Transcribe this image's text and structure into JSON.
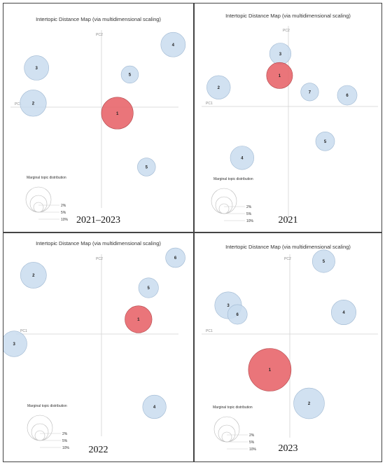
{
  "colors": {
    "bubble": "#c9dcef",
    "bubble_stroke": "#9fb8d2",
    "selected": "#e8666c",
    "selected_stroke": "#b04448",
    "axis": "#d3d3d3"
  },
  "chart_data": [
    {
      "type": "scatter",
      "title": "Intertopic Distance Map (via multidimensional scaling)",
      "caption": "2021–2023",
      "xlabel": "PC1",
      "ylabel": "PC2",
      "legend_title": "Marginal topic distribution",
      "legend_sizes": [
        "2%",
        "5%",
        "10%"
      ],
      "xlim": [
        -1,
        1
      ],
      "ylim": [
        -1,
        1
      ],
      "topics": [
        {
          "id": "3",
          "x": -0.78,
          "y": 0.59,
          "size": 6.8,
          "selected": false
        },
        {
          "id": "2",
          "x": -0.82,
          "y": 0.06,
          "size": 7.3,
          "selected": false
        },
        {
          "id": "4",
          "x": 0.86,
          "y": 0.94,
          "size": 6.8,
          "selected": false
        },
        {
          "id": "5",
          "x": 0.34,
          "y": 0.49,
          "size": 4.8,
          "selected": false
        },
        {
          "id": "1",
          "x": 0.19,
          "y": -0.09,
          "size": 8.8,
          "selected": true
        },
        {
          "id": "5",
          "x": 0.54,
          "y": -0.9,
          "size": 5.0,
          "selected": false
        }
      ]
    },
    {
      "type": "scatter",
      "title": "Intertopic Distance Map (via multidimensional scaling)",
      "caption": "2021",
      "xlabel": "PC1",
      "ylabel": "PC2",
      "legend_title": "Marginal topic distribution",
      "legend_sizes": [
        "2%",
        "5%",
        "10%"
      ],
      "xlim": [
        -1,
        1
      ],
      "ylim": [
        -1,
        1
      ],
      "topics": [
        {
          "id": "3",
          "x": -0.11,
          "y": 0.8,
          "size": 6.0,
          "selected": false
        },
        {
          "id": "1",
          "x": -0.12,
          "y": 0.47,
          "size": 7.3,
          "selected": true
        },
        {
          "id": "2",
          "x": -0.95,
          "y": 0.29,
          "size": 6.6,
          "selected": false
        },
        {
          "id": "7",
          "x": 0.29,
          "y": 0.22,
          "size": 5.0,
          "selected": false
        },
        {
          "id": "6",
          "x": 0.8,
          "y": 0.17,
          "size": 5.5,
          "selected": false
        },
        {
          "id": "5",
          "x": 0.5,
          "y": -0.53,
          "size": 5.3,
          "selected": false
        },
        {
          "id": "4",
          "x": -0.63,
          "y": -0.78,
          "size": 6.6,
          "selected": false
        }
      ]
    },
    {
      "type": "scatter",
      "title": "Intertopic Distance Map (via multidimensional scaling)",
      "caption": "2022",
      "xlabel": "PC1",
      "ylabel": "PC2",
      "legend_title": "Marginal topic distribution",
      "legend_sizes": [
        "2%",
        "5%",
        "10%"
      ],
      "xlim": [
        -1,
        1
      ],
      "ylim": [
        -1,
        1
      ],
      "topics": [
        {
          "id": "2",
          "x": -0.81,
          "y": 0.84,
          "size": 7.3,
          "selected": false
        },
        {
          "id": "6",
          "x": 0.88,
          "y": 1.09,
          "size": 5.5,
          "selected": false
        },
        {
          "id": "5",
          "x": 0.56,
          "y": 0.66,
          "size": 5.6,
          "selected": false
        },
        {
          "id": "1",
          "x": 0.44,
          "y": 0.21,
          "size": 7.6,
          "selected": true
        },
        {
          "id": "3",
          "x": -1.04,
          "y": -0.14,
          "size": 7.2,
          "selected": false
        },
        {
          "id": "4",
          "x": 0.63,
          "y": -1.04,
          "size": 6.6,
          "selected": false
        }
      ]
    },
    {
      "type": "scatter",
      "title": "Intertopic Distance Map (via multidimensional scaling)",
      "caption": "2023",
      "xlabel": "PC1",
      "ylabel": "PC2",
      "legend_title": "Marginal topic distribution",
      "legend_sizes": [
        "2%",
        "5%",
        "10%"
      ],
      "xlim": [
        -1,
        1
      ],
      "ylim": [
        -1,
        1
      ],
      "topics": [
        {
          "id": "5",
          "x": 0.44,
          "y": 1.04,
          "size": 5.3,
          "selected": false
        },
        {
          "id": "3",
          "x": -0.8,
          "y": 0.41,
          "size": 6.3,
          "selected": false
        },
        {
          "id": "6",
          "x": -0.68,
          "y": 0.28,
          "size": 4.6,
          "selected": false
        },
        {
          "id": "4",
          "x": 0.7,
          "y": 0.31,
          "size": 5.8,
          "selected": false
        },
        {
          "id": "1",
          "x": -0.26,
          "y": -0.51,
          "size": 10.0,
          "selected": true
        },
        {
          "id": "2",
          "x": 0.25,
          "y": -0.99,
          "size": 7.2,
          "selected": false
        }
      ]
    }
  ]
}
